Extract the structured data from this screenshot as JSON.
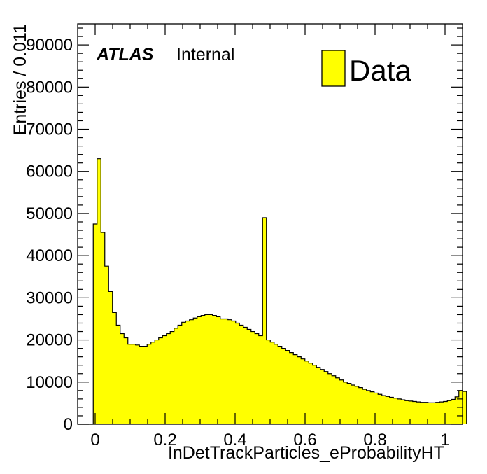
{
  "chart_data": {
    "type": "bar",
    "histogram": true,
    "xlabel": "InDetTrackParticles_eProbabilityHT",
    "ylabel": "Entries / 0.011",
    "xlim": [
      -0.05,
      1.05
    ],
    "ylim": [
      0,
      95000
    ],
    "x_ticks": [
      0,
      0.2,
      0.4,
      0.6,
      0.8,
      1
    ],
    "x_tick_labels": [
      "0",
      "0.2",
      "0.4",
      "0.6",
      "0.8",
      "1"
    ],
    "y_ticks": [
      0,
      10000,
      20000,
      30000,
      40000,
      50000,
      60000,
      70000,
      80000,
      90000
    ],
    "y_tick_labels": [
      "0",
      "10000",
      "20000",
      "30000",
      "40000",
      "50000",
      "60000",
      "70000",
      "80000",
      "90000"
    ],
    "atlas_label": "ATLAS",
    "atlas_sublabel": "Internal",
    "legend": [
      {
        "name": "Data",
        "color": "#ffff00"
      }
    ],
    "legend_position": "top-right",
    "fill_color": "#ffff00",
    "bin_width": 0.011,
    "bin_start": -0.0055,
    "series": [
      {
        "name": "Data",
        "values": [
          47500,
          63000,
          45500,
          37500,
          31500,
          26500,
          23500,
          21500,
          20500,
          19000,
          19000,
          18800,
          18500,
          18500,
          19000,
          19500,
          20000,
          20500,
          21000,
          21500,
          22000,
          22800,
          23500,
          24200,
          24500,
          24800,
          25200,
          25500,
          25800,
          26000,
          26000,
          25800,
          25500,
          25000,
          25000,
          24800,
          24500,
          24000,
          23500,
          23000,
          22500,
          22000,
          21500,
          21000,
          49000,
          20000,
          19500,
          19000,
          18500,
          18000,
          17500,
          17000,
          16500,
          16000,
          15500,
          15000,
          14500,
          14000,
          13500,
          13000,
          12500,
          12000,
          11500,
          11000,
          10500,
          10000,
          9700,
          9300,
          9000,
          8700,
          8300,
          8000,
          7700,
          7400,
          7100,
          6800,
          6600,
          6400,
          6200,
          6000,
          5800,
          5600,
          5500,
          5400,
          5300,
          5200,
          5200,
          5100,
          5100,
          5200,
          5300,
          5400,
          5600,
          5900,
          6500,
          8000,
          7800
        ]
      }
    ]
  }
}
